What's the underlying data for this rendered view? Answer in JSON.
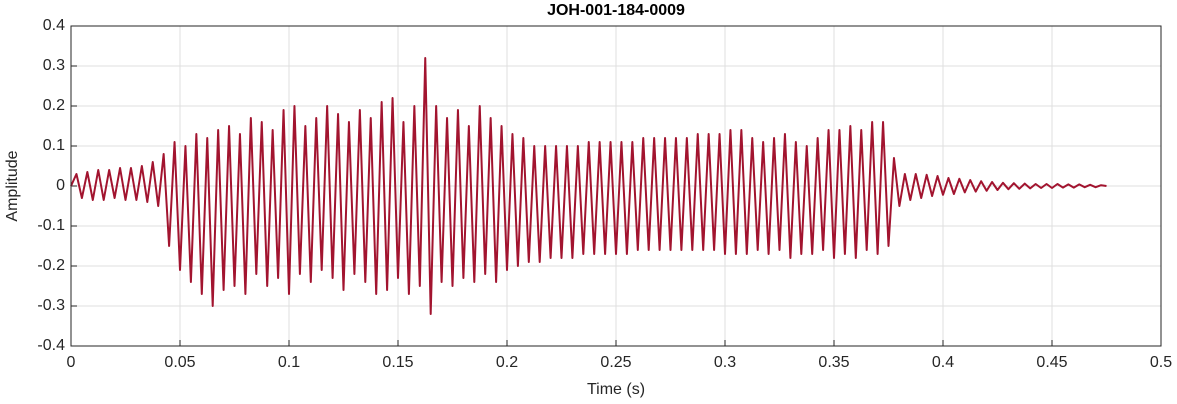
{
  "chart_data": {
    "type": "line",
    "title": "JOH-001-184-0009",
    "xlabel": "Time (s)",
    "ylabel": "Amplitude",
    "x": [
      0,
      0.0025,
      0.005,
      0.0075,
      0.01,
      0.0125,
      0.015,
      0.0175,
      0.02,
      0.0225,
      0.025,
      0.0275,
      0.03,
      0.0325,
      0.035,
      0.0375,
      0.04,
      0.0425,
      0.045,
      0.0475,
      0.05,
      0.0525,
      0.055,
      0.0575,
      0.06,
      0.0625,
      0.065,
      0.0675,
      0.07,
      0.0725,
      0.075,
      0.0775,
      0.08,
      0.0825,
      0.085,
      0.0875,
      0.09,
      0.0925,
      0.095,
      0.0975,
      0.1,
      0.1025,
      0.105,
      0.1075,
      0.11,
      0.1125,
      0.115,
      0.1175,
      0.12,
      0.1225,
      0.125,
      0.1275,
      0.13,
      0.1325,
      0.135,
      0.1375,
      0.14,
      0.1425,
      0.145,
      0.1475,
      0.15,
      0.1525,
      0.155,
      0.1575,
      0.16,
      0.1625,
      0.165,
      0.1675,
      0.17,
      0.1725,
      0.175,
      0.1775,
      0.18,
      0.1825,
      0.185,
      0.1875,
      0.19,
      0.1925,
      0.195,
      0.1975,
      0.2,
      0.2025,
      0.205,
      0.2075,
      0.21,
      0.2125,
      0.215,
      0.2175,
      0.22,
      0.2225,
      0.225,
      0.2275,
      0.23,
      0.2325,
      0.235,
      0.2375,
      0.24,
      0.2425,
      0.245,
      0.2475,
      0.25,
      0.2525,
      0.255,
      0.2575,
      0.26,
      0.2625,
      0.265,
      0.2675,
      0.27,
      0.2725,
      0.275,
      0.2775,
      0.28,
      0.2825,
      0.285,
      0.2875,
      0.29,
      0.2925,
      0.295,
      0.2975,
      0.3,
      0.3025,
      0.305,
      0.3075,
      0.31,
      0.3125,
      0.315,
      0.3175,
      0.32,
      0.3225,
      0.325,
      0.3275,
      0.33,
      0.3325,
      0.335,
      0.3375,
      0.34,
      0.3425,
      0.345,
      0.3475,
      0.35,
      0.3525,
      0.355,
      0.3575,
      0.36,
      0.3625,
      0.365,
      0.3675,
      0.37,
      0.3725,
      0.375,
      0.3775,
      0.38,
      0.3825,
      0.385,
      0.3875,
      0.39,
      0.3925,
      0.395,
      0.3975,
      0.4,
      0.4025,
      0.405,
      0.4075,
      0.41,
      0.4125,
      0.415,
      0.4175,
      0.42,
      0.4225,
      0.425,
      0.4275,
      0.43,
      0.4325,
      0.435,
      0.4375,
      0.44,
      0.4425,
      0.445,
      0.4475,
      0.45,
      0.4525,
      0.455,
      0.4575,
      0.46,
      0.4625,
      0.465,
      0.4675,
      0.47,
      0.4725,
      0.475
    ],
    "series": [
      {
        "color": "#a2142f",
        "values": [
          0,
          0.03,
          -0.03,
          0.035,
          -0.035,
          0.04,
          -0.035,
          0.04,
          -0.03,
          0.045,
          -0.035,
          0.045,
          -0.035,
          0.05,
          -0.04,
          0.06,
          -0.05,
          0.08,
          -0.15,
          0.11,
          -0.21,
          0.1,
          -0.24,
          0.13,
          -0.27,
          0.12,
          -0.3,
          0.14,
          -0.26,
          0.15,
          -0.25,
          0.13,
          -0.27,
          0.17,
          -0.22,
          0.16,
          -0.25,
          0.14,
          -0.23,
          0.19,
          -0.27,
          0.2,
          -0.22,
          0.15,
          -0.24,
          0.17,
          -0.21,
          0.2,
          -0.23,
          0.18,
          -0.26,
          0.16,
          -0.22,
          0.19,
          -0.24,
          0.17,
          -0.27,
          0.21,
          -0.26,
          0.22,
          -0.23,
          0.16,
          -0.27,
          0.2,
          -0.25,
          0.32,
          -0.32,
          0.2,
          -0.24,
          0.17,
          -0.25,
          0.19,
          -0.23,
          0.15,
          -0.24,
          0.2,
          -0.22,
          0.17,
          -0.24,
          0.15,
          -0.21,
          0.13,
          -0.2,
          0.12,
          -0.19,
          0.1,
          -0.19,
          0.1,
          -0.18,
          0.1,
          -0.18,
          0.1,
          -0.18,
          0.1,
          -0.17,
          0.11,
          -0.17,
          0.11,
          -0.17,
          0.11,
          -0.17,
          0.11,
          -0.17,
          0.11,
          -0.16,
          0.12,
          -0.16,
          0.12,
          -0.16,
          0.12,
          -0.16,
          0.12,
          -0.16,
          0.12,
          -0.16,
          0.13,
          -0.16,
          0.13,
          -0.16,
          0.13,
          -0.17,
          0.14,
          -0.17,
          0.14,
          -0.17,
          0.12,
          -0.16,
          0.11,
          -0.17,
          0.12,
          -0.16,
          0.13,
          -0.18,
          0.11,
          -0.17,
          0.1,
          -0.17,
          0.12,
          -0.16,
          0.14,
          -0.18,
          0.14,
          -0.17,
          0.15,
          -0.18,
          0.14,
          -0.16,
          0.16,
          -0.17,
          0.16,
          -0.15,
          0.07,
          -0.05,
          0.03,
          -0.035,
          0.03,
          -0.03,
          0.028,
          -0.025,
          0.025,
          -0.022,
          0.02,
          -0.02,
          0.018,
          -0.016,
          0.015,
          -0.014,
          0.012,
          -0.012,
          0.01,
          -0.01,
          0.008,
          -0.008,
          0.007,
          -0.007,
          0.006,
          -0.006,
          0.005,
          -0.005,
          0.005,
          -0.005,
          0.005,
          -0.004,
          0.004,
          -0.004,
          0.004,
          -0.003,
          0.003,
          -0.003,
          0.002,
          0
        ]
      }
    ],
    "xlim": [
      0,
      0.5
    ],
    "xticks": [
      0,
      0.05,
      0.1,
      0.15,
      0.2,
      0.25,
      0.3,
      0.35,
      0.4,
      0.45,
      0.5
    ],
    "ylim": [
      -0.4,
      0.4
    ],
    "yticks": [
      -0.4,
      -0.3,
      -0.2,
      -0.1,
      0,
      0.1,
      0.2,
      0.3,
      0.4
    ],
    "grid": true
  }
}
